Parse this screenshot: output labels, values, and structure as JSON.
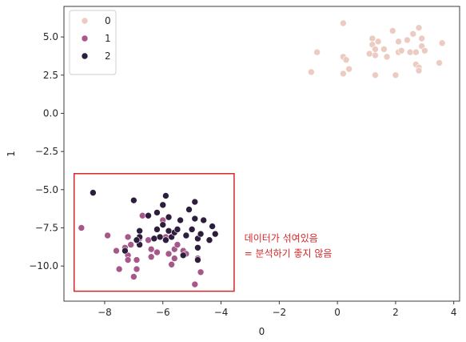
{
  "chart_data": {
    "type": "scatter",
    "xlabel": "0",
    "ylabel": "1",
    "xlim": [
      -9.4,
      4.2
    ],
    "ylim": [
      -12.3,
      7.0
    ],
    "xticks": [
      -8,
      -6,
      -4,
      -2,
      0,
      2,
      4
    ],
    "yticks": [
      -10.0,
      -7.5,
      -5.0,
      -2.5,
      0.0,
      2.5,
      5.0
    ],
    "xtick_labels": [
      "−8",
      "−6",
      "−4",
      "−2",
      "0",
      "2",
      "4"
    ],
    "ytick_labels": [
      "−10.0",
      "−7.5",
      "−5.0",
      "−2.5",
      "0.0",
      "2.5",
      "5.0"
    ],
    "grid": false,
    "legend": {
      "position": "top-left"
    },
    "series": [
      {
        "name": "0",
        "color": "#ebcbc2",
        "points": [
          [
            0.2,
            5.9
          ],
          [
            -0.7,
            4.0
          ],
          [
            -0.9,
            2.7
          ],
          [
            0.2,
            3.7
          ],
          [
            0.3,
            3.5
          ],
          [
            0.2,
            2.6
          ],
          [
            0.4,
            2.9
          ],
          [
            1.2,
            4.9
          ],
          [
            1.2,
            4.5
          ],
          [
            1.3,
            4.2
          ],
          [
            1.3,
            3.8
          ],
          [
            1.4,
            4.7
          ],
          [
            1.1,
            3.9
          ],
          [
            1.3,
            2.5
          ],
          [
            1.6,
            4.2
          ],
          [
            1.7,
            3.7
          ],
          [
            1.9,
            5.4
          ],
          [
            2.0,
            2.5
          ],
          [
            2.1,
            4.0
          ],
          [
            2.1,
            4.7
          ],
          [
            2.2,
            4.1
          ],
          [
            2.4,
            4.8
          ],
          [
            2.5,
            4.0
          ],
          [
            2.6,
            5.2
          ],
          [
            2.7,
            3.2
          ],
          [
            2.7,
            4.0
          ],
          [
            2.8,
            3.0
          ],
          [
            2.8,
            5.6
          ],
          [
            2.9,
            4.9
          ],
          [
            2.9,
            4.4
          ],
          [
            2.8,
            2.8
          ],
          [
            3.0,
            4.1
          ],
          [
            3.5,
            3.3
          ],
          [
            3.6,
            4.6
          ]
        ]
      },
      {
        "name": "1",
        "color": "#a6588a",
        "points": [
          [
            -8.8,
            -7.5
          ],
          [
            -7.9,
            -8.0
          ],
          [
            -7.6,
            -9.0
          ],
          [
            -7.5,
            -10.2
          ],
          [
            -7.3,
            -8.8
          ],
          [
            -7.2,
            -8.1
          ],
          [
            -7.2,
            -9.3
          ],
          [
            -7.2,
            -9.6
          ],
          [
            -7.1,
            -8.6
          ],
          [
            -7.0,
            -10.7
          ],
          [
            -6.9,
            -9.6
          ],
          [
            -6.9,
            -10.2
          ],
          [
            -6.8,
            -8.2
          ],
          [
            -6.7,
            -6.7
          ],
          [
            -6.5,
            -8.3
          ],
          [
            -6.4,
            -8.9
          ],
          [
            -6.4,
            -9.4
          ],
          [
            -6.2,
            -9.1
          ],
          [
            -6.0,
            -7.0
          ],
          [
            -5.9,
            -8.1
          ],
          [
            -5.8,
            -9.2
          ],
          [
            -5.7,
            -9.9
          ],
          [
            -5.6,
            -8.9
          ],
          [
            -5.6,
            -9.5
          ],
          [
            -5.5,
            -8.6
          ],
          [
            -5.3,
            -9.0
          ],
          [
            -5.2,
            -9.2
          ],
          [
            -4.9,
            -11.2
          ],
          [
            -4.8,
            -9.5
          ],
          [
            -4.7,
            -10.4
          ]
        ]
      },
      {
        "name": "2",
        "color": "#2d1e3e",
        "points": [
          [
            -8.4,
            -5.2
          ],
          [
            -7.3,
            -9.0
          ],
          [
            -7.0,
            -5.7
          ],
          [
            -6.8,
            -7.7
          ],
          [
            -6.8,
            -8.1
          ],
          [
            -6.8,
            -8.6
          ],
          [
            -6.9,
            -8.3
          ],
          [
            -6.5,
            -6.7
          ],
          [
            -6.2,
            -7.6
          ],
          [
            -6.2,
            -6.5
          ],
          [
            -6.1,
            -8.1
          ],
          [
            -6.0,
            -6.0
          ],
          [
            -6.0,
            -7.3
          ],
          [
            -5.9,
            -5.4
          ],
          [
            -5.8,
            -6.8
          ],
          [
            -5.8,
            -7.7
          ],
          [
            -5.9,
            -8.3
          ],
          [
            -5.7,
            -8.1
          ],
          [
            -5.6,
            -7.8
          ],
          [
            -5.5,
            -7.6
          ],
          [
            -5.4,
            -7.0
          ],
          [
            -5.3,
            -9.3
          ],
          [
            -5.2,
            -8.0
          ],
          [
            -5.0,
            -7.6
          ],
          [
            -4.9,
            -5.8
          ],
          [
            -4.9,
            -6.9
          ],
          [
            -4.8,
            -8.2
          ],
          [
            -4.8,
            -9.6
          ],
          [
            -4.8,
            -8.8
          ],
          [
            -4.7,
            -7.9
          ],
          [
            -4.6,
            -7.0
          ],
          [
            -4.4,
            -8.3
          ],
          [
            -4.3,
            -7.4
          ],
          [
            -4.2,
            -7.9
          ],
          [
            -5.1,
            -6.3
          ],
          [
            -6.3,
            -8.2
          ]
        ]
      }
    ],
    "annotation": {
      "box": {
        "x0": -9.05,
        "x1": -3.55,
        "y0": -11.65,
        "y1": -3.95
      },
      "color": "#d62728",
      "text_anchor": {
        "x": -3.2,
        "y": -8.4
      },
      "lines": [
        "데이터가 섞여있음",
        "= 분석하기 좋지 않음"
      ]
    }
  }
}
